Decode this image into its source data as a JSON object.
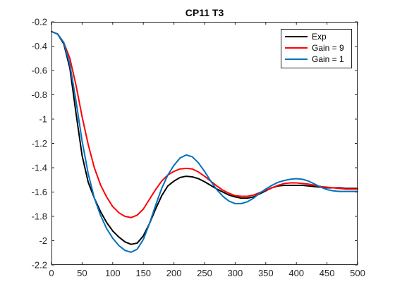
{
  "chart_data": {
    "type": "line",
    "title": "CP11 T3",
    "xlabel": "",
    "ylabel": "",
    "xlim": [
      0,
      500
    ],
    "ylim": [
      -2.2,
      -0.2
    ],
    "xticks": [
      0,
      50,
      100,
      150,
      200,
      250,
      300,
      350,
      400,
      450,
      500
    ],
    "yticks": [
      -2.2,
      -2,
      -1.8,
      -1.6,
      -1.4,
      -1.2,
      -1,
      -0.8,
      -0.6,
      -0.4,
      -0.2
    ],
    "xtick_labels": [
      "0",
      "50",
      "100",
      "150",
      "200",
      "250",
      "300",
      "350",
      "400",
      "450",
      "500"
    ],
    "ytick_labels": [
      "-2.2",
      "-2",
      "-1.8",
      "-1.6",
      "-1.4",
      "-1.2",
      "-1",
      "-0.8",
      "-0.6",
      "-0.4",
      "-0.2"
    ],
    "grid": false,
    "legend_position": "top-right",
    "series": [
      {
        "name": "Exp",
        "color": "#000000",
        "points": [
          [
            0,
            -0.28
          ],
          [
            10,
            -0.3
          ],
          [
            20,
            -0.38
          ],
          [
            30,
            -0.58
          ],
          [
            40,
            -0.95
          ],
          [
            50,
            -1.3
          ],
          [
            60,
            -1.52
          ],
          [
            70,
            -1.65
          ],
          [
            80,
            -1.76
          ],
          [
            90,
            -1.85
          ],
          [
            100,
            -1.92
          ],
          [
            110,
            -1.97
          ],
          [
            120,
            -2.01
          ],
          [
            130,
            -2.03
          ],
          [
            140,
            -2.02
          ],
          [
            150,
            -1.96
          ],
          [
            160,
            -1.86
          ],
          [
            170,
            -1.74
          ],
          [
            180,
            -1.63
          ],
          [
            190,
            -1.55
          ],
          [
            200,
            -1.51
          ],
          [
            210,
            -1.48
          ],
          [
            220,
            -1.47
          ],
          [
            230,
            -1.475
          ],
          [
            240,
            -1.49
          ],
          [
            250,
            -1.515
          ],
          [
            260,
            -1.545
          ],
          [
            270,
            -1.575
          ],
          [
            280,
            -1.6
          ],
          [
            290,
            -1.625
          ],
          [
            300,
            -1.64
          ],
          [
            310,
            -1.65
          ],
          [
            320,
            -1.65
          ],
          [
            330,
            -1.64
          ],
          [
            340,
            -1.615
          ],
          [
            350,
            -1.59
          ],
          [
            360,
            -1.565
          ],
          [
            370,
            -1.55
          ],
          [
            380,
            -1.545
          ],
          [
            390,
            -1.545
          ],
          [
            400,
            -1.545
          ],
          [
            410,
            -1.545
          ],
          [
            420,
            -1.55
          ],
          [
            430,
            -1.555
          ],
          [
            440,
            -1.56
          ],
          [
            450,
            -1.565
          ],
          [
            460,
            -1.565
          ],
          [
            470,
            -1.565
          ],
          [
            480,
            -1.57
          ],
          [
            490,
            -1.57
          ],
          [
            500,
            -1.57
          ]
        ]
      },
      {
        "name": "Gain = 9",
        "color": "#ff0000",
        "points": [
          [
            0,
            -0.28
          ],
          [
            10,
            -0.3
          ],
          [
            20,
            -0.37
          ],
          [
            30,
            -0.5
          ],
          [
            40,
            -0.72
          ],
          [
            50,
            -0.98
          ],
          [
            60,
            -1.21
          ],
          [
            70,
            -1.4
          ],
          [
            80,
            -1.54
          ],
          [
            90,
            -1.64
          ],
          [
            100,
            -1.72
          ],
          [
            110,
            -1.77
          ],
          [
            120,
            -1.8
          ],
          [
            130,
            -1.81
          ],
          [
            140,
            -1.79
          ],
          [
            150,
            -1.74
          ],
          [
            160,
            -1.66
          ],
          [
            170,
            -1.58
          ],
          [
            180,
            -1.51
          ],
          [
            190,
            -1.46
          ],
          [
            200,
            -1.43
          ],
          [
            210,
            -1.41
          ],
          [
            220,
            -1.405
          ],
          [
            230,
            -1.41
          ],
          [
            240,
            -1.435
          ],
          [
            250,
            -1.47
          ],
          [
            260,
            -1.51
          ],
          [
            270,
            -1.55
          ],
          [
            280,
            -1.585
          ],
          [
            290,
            -1.61
          ],
          [
            300,
            -1.63
          ],
          [
            310,
            -1.635
          ],
          [
            320,
            -1.635
          ],
          [
            330,
            -1.625
          ],
          [
            340,
            -1.605
          ],
          [
            350,
            -1.585
          ],
          [
            360,
            -1.565
          ],
          [
            370,
            -1.545
          ],
          [
            380,
            -1.53
          ],
          [
            390,
            -1.525
          ],
          [
            400,
            -1.525
          ],
          [
            410,
            -1.53
          ],
          [
            420,
            -1.535
          ],
          [
            430,
            -1.545
          ],
          [
            440,
            -1.555
          ],
          [
            450,
            -1.56
          ],
          [
            460,
            -1.565
          ],
          [
            470,
            -1.57
          ],
          [
            480,
            -1.575
          ],
          [
            490,
            -1.575
          ],
          [
            500,
            -1.575
          ]
        ]
      },
      {
        "name": "Gain = 1",
        "color": "#0072bd",
        "points": [
          [
            0,
            -0.28
          ],
          [
            10,
            -0.3
          ],
          [
            20,
            -0.37
          ],
          [
            30,
            -0.55
          ],
          [
            40,
            -0.85
          ],
          [
            50,
            -1.18
          ],
          [
            60,
            -1.45
          ],
          [
            70,
            -1.65
          ],
          [
            80,
            -1.79
          ],
          [
            90,
            -1.9
          ],
          [
            100,
            -1.98
          ],
          [
            110,
            -2.04
          ],
          [
            120,
            -2.08
          ],
          [
            130,
            -2.095
          ],
          [
            140,
            -2.07
          ],
          [
            150,
            -1.99
          ],
          [
            160,
            -1.86
          ],
          [
            170,
            -1.71
          ],
          [
            180,
            -1.57
          ],
          [
            190,
            -1.46
          ],
          [
            200,
            -1.38
          ],
          [
            210,
            -1.32
          ],
          [
            220,
            -1.295
          ],
          [
            230,
            -1.31
          ],
          [
            240,
            -1.36
          ],
          [
            250,
            -1.43
          ],
          [
            260,
            -1.51
          ],
          [
            270,
            -1.58
          ],
          [
            280,
            -1.635
          ],
          [
            290,
            -1.675
          ],
          [
            300,
            -1.695
          ],
          [
            310,
            -1.695
          ],
          [
            320,
            -1.68
          ],
          [
            330,
            -1.65
          ],
          [
            340,
            -1.61
          ],
          [
            350,
            -1.575
          ],
          [
            360,
            -1.545
          ],
          [
            370,
            -1.52
          ],
          [
            380,
            -1.505
          ],
          [
            390,
            -1.495
          ],
          [
            400,
            -1.49
          ],
          [
            410,
            -1.495
          ],
          [
            420,
            -1.51
          ],
          [
            430,
            -1.535
          ],
          [
            440,
            -1.56
          ],
          [
            450,
            -1.58
          ],
          [
            460,
            -1.59
          ],
          [
            470,
            -1.595
          ],
          [
            480,
            -1.595
          ],
          [
            490,
            -1.595
          ],
          [
            500,
            -1.595
          ]
        ]
      }
    ]
  }
}
